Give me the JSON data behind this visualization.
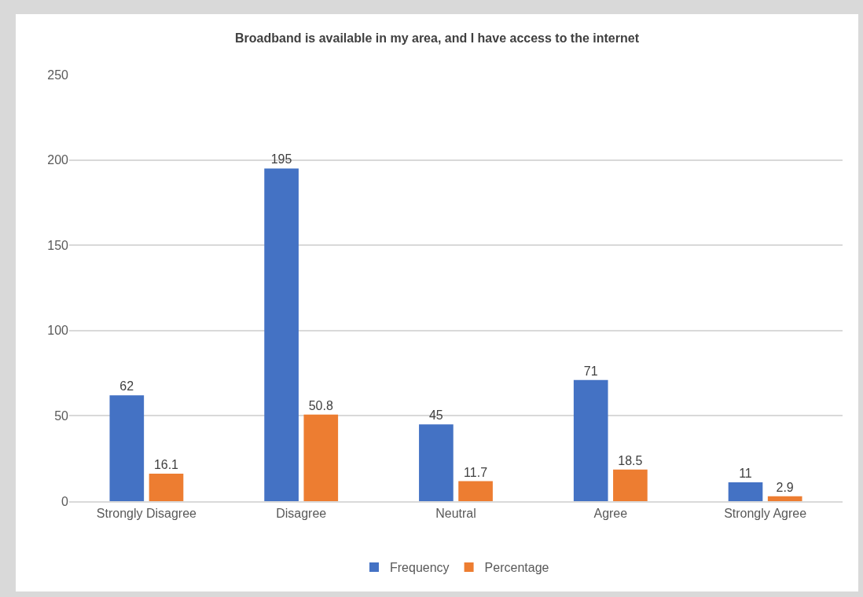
{
  "chart_data": {
    "type": "bar",
    "title": "Broadband is available in my area, and I have access to the internet",
    "categories": [
      "Strongly Disagree",
      "Disagree",
      "Neutral",
      "Agree",
      "Strongly Agree"
    ],
    "series": [
      {
        "name": "Frequency",
        "color": "#4472c4",
        "values": [
          62,
          195,
          45,
          71,
          11
        ]
      },
      {
        "name": "Percentage",
        "color": "#ed7d31",
        "values": [
          16.1,
          50.8,
          11.7,
          18.5,
          2.9
        ]
      }
    ],
    "ylim": [
      0,
      250
    ],
    "yticks": [
      0,
      50,
      100,
      150,
      200,
      250
    ],
    "grid": "y",
    "legend": "bottom",
    "data_labels": true
  }
}
